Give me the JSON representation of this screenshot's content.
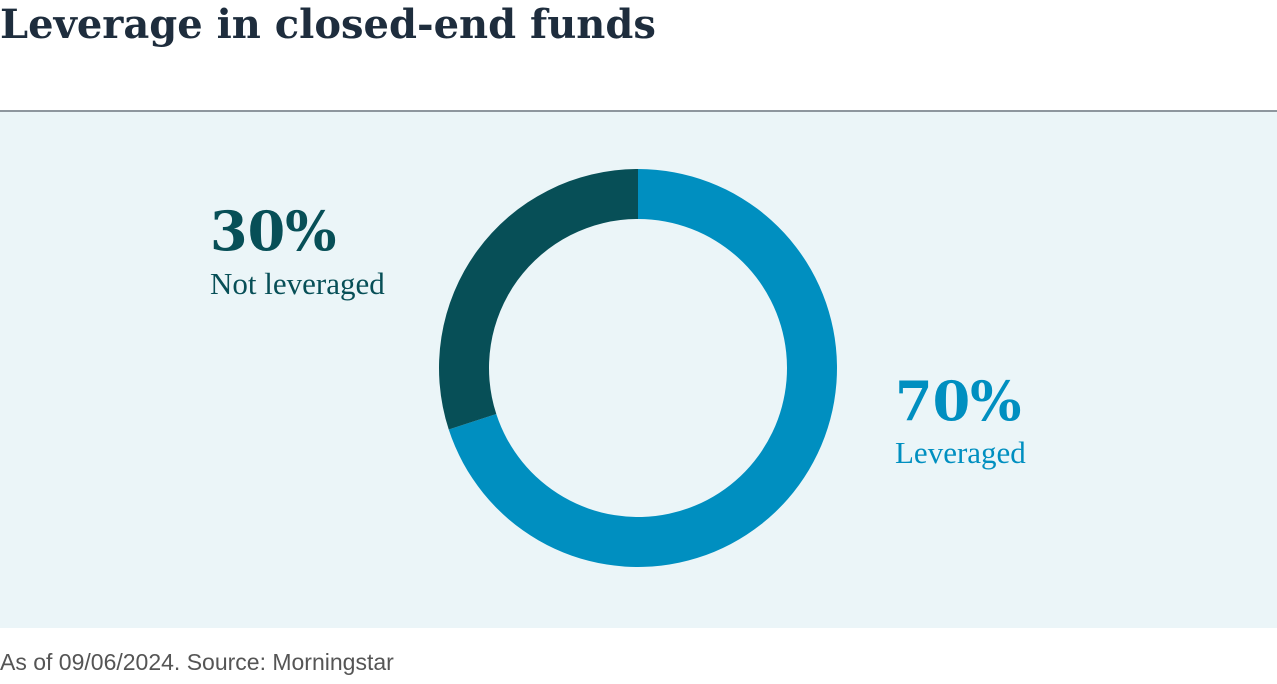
{
  "chart_data": {
    "type": "pie",
    "title": "Leverage in closed-end funds",
    "categories": [
      "Leveraged",
      "Not leveraged"
    ],
    "values": [
      70,
      30
    ],
    "value_labels": [
      "70%",
      "30%"
    ],
    "colors": [
      "#008fc0",
      "#074f57"
    ],
    "source": "As of 09/06/2024. Source: Morningstar"
  }
}
